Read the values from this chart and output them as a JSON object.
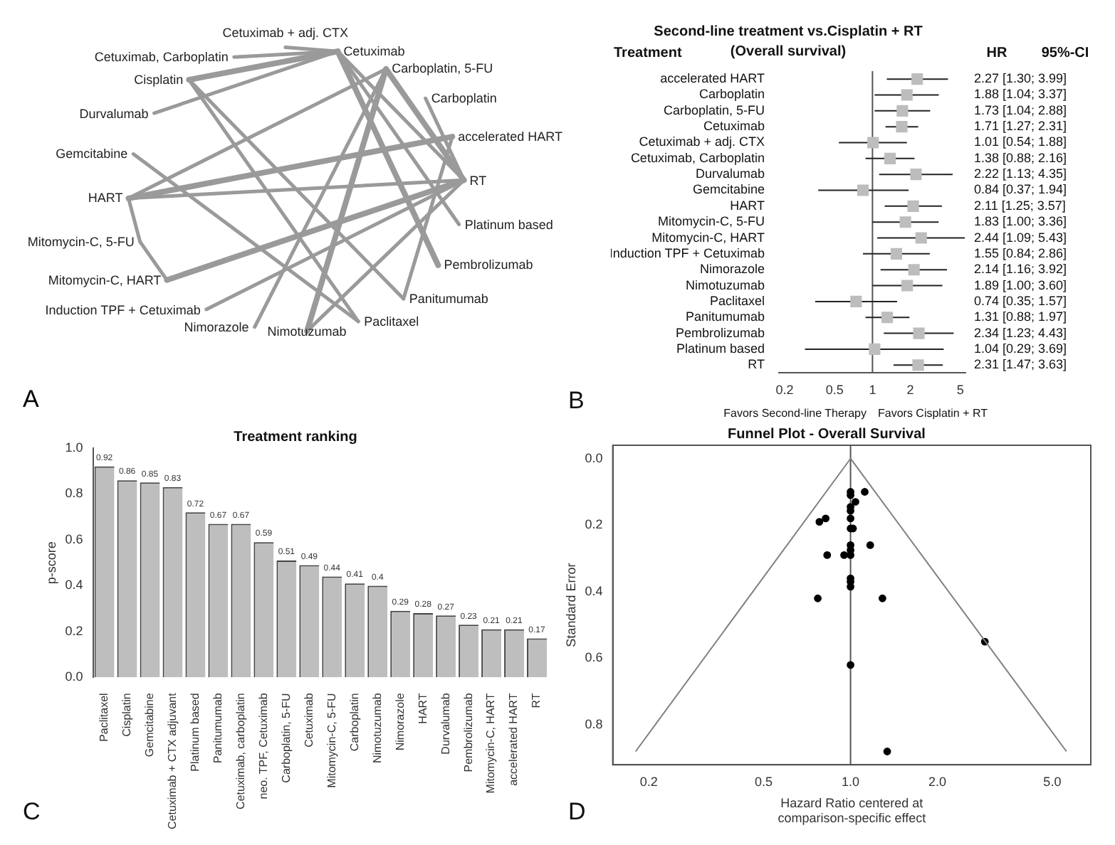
{
  "chart_data": [
    {
      "type": "other",
      "categories": [
        "Cetuximab",
        "Carboplatin, 5-FU",
        "Carboplatin",
        "accelerated HART",
        "RT",
        "Platinum based",
        "Pembrolizumab",
        "Panitumumab",
        "Paclitaxel",
        "Nimotuzumab",
        "Nimorazole",
        "Induction TPF + Cetuximab",
        "Mitomycin-C, HART",
        "Mitomycin-C, 5-FU",
        "HART",
        "Gemcitabine",
        "Durvalumab",
        "Cisplatin",
        "Cetuximab, Carboplatin",
        "Cetuximab + adj. CTX"
      ],
      "annotations": [
        "A"
      ]
    },
    {
      "type": "scatter",
      "orientation": "horizontal",
      "title": "Second-line treatment vs.Cisplatin + RT",
      "subtitle": "(Overall survival)",
      "categories": [
        "accelerated HART",
        "Carboplatin",
        "Carboplatin, 5-FU",
        "Cetuximab",
        "Cetuximab + adj. CTX",
        "Cetuximab, Carboplatin",
        "Durvalumab",
        "Gemcitabine",
        "HART",
        "Mitomycin-C, 5-FU",
        "Mitomycin-C, HART",
        "Induction TPF + Cetuximab",
        "Nimorazole",
        "Nimotuzumab",
        "Paclitaxel",
        "Panitumumab",
        "Pembrolizumab",
        "Platinum based",
        "RT"
      ],
      "values": [
        2.27,
        1.88,
        1.73,
        1.71,
        1.01,
        1.38,
        2.22,
        0.84,
        2.11,
        1.83,
        2.44,
        1.55,
        2.14,
        1.89,
        0.74,
        1.31,
        2.34,
        1.04,
        2.31
      ],
      "errors": [
        [
          1.3,
          3.99
        ],
        [
          1.04,
          3.37
        ],
        [
          1.04,
          2.88
        ],
        [
          1.27,
          2.31
        ],
        [
          0.54,
          1.88
        ],
        [
          0.88,
          2.16
        ],
        [
          1.13,
          4.35
        ],
        [
          0.37,
          1.94
        ],
        [
          1.25,
          3.57
        ],
        [
          1.0,
          3.36
        ],
        [
          1.09,
          5.43
        ],
        [
          0.84,
          2.86
        ],
        [
          1.16,
          3.92
        ],
        [
          1.0,
          3.6
        ],
        [
          0.35,
          1.57
        ],
        [
          0.88,
          1.97
        ],
        [
          1.23,
          4.43
        ],
        [
          0.29,
          3.69
        ],
        [
          1.47,
          3.63
        ]
      ],
      "value_labels": [
        "2.27 [1.30; 3.99]",
        "1.88 [1.04; 3.37]",
        "1.73 [1.04; 2.88]",
        "1.71 [1.27; 2.31]",
        "1.01 [0.54; 1.88]",
        "1.38 [0.88; 2.16]",
        "2.22 [1.13; 4.35]",
        "0.84 [0.37; 1.94]",
        "2.11 [1.25; 3.57]",
        "1.83 [1.00; 3.36]",
        "2.44 [1.09; 5.43]",
        "1.55 [0.84; 2.86]",
        "2.14 [1.16; 3.92]",
        "1.89 [1.00; 3.60]",
        "0.74 [0.35; 1.57]",
        "1.31 [0.88; 1.97]",
        "2.34 [1.23; 4.43]",
        "1.04 [0.29; 3.69]",
        "2.31 [1.47; 3.63]"
      ],
      "color": "#bdbdbd",
      "marker": "square",
      "log": "x",
      "xlim": [
        0.18,
        5.5
      ],
      "xticks": [
        0.2,
        0.5,
        1,
        2,
        5
      ],
      "ref_lines": [
        {
          "axis": "x",
          "value": 1
        }
      ],
      "annotations": [
        "Treatment",
        "HR",
        "95%-CI",
        "Favors Second-line Therapy",
        "Favors Cisplatin + RT",
        "B"
      ]
    },
    {
      "type": "bar",
      "title": "Treatment ranking",
      "ylabel": "p-score",
      "categories": [
        "Paclitaxel",
        "Cisplatin",
        "Gemcitabine",
        "Cetuximab + CTX adjuvant",
        "Platinum based",
        "Panitumumab",
        "Cetuximab, carboplatin",
        "neo. TPF, Cetuximab",
        "Carboplatin, 5-FU",
        "Cetuximab",
        "Mitomycin-C, 5-FU",
        "Carboplatin",
        "Nimotuzumab",
        "Nimorazole",
        "HART",
        "Durvalumab",
        "Pembrolizumab",
        "Mitomycin-C, HART",
        "accelerated HART",
        "RT"
      ],
      "values": [
        0.92,
        0.86,
        0.85,
        0.83,
        0.72,
        0.67,
        0.67,
        0.59,
        0.51,
        0.49,
        0.44,
        0.41,
        0.4,
        0.29,
        0.28,
        0.27,
        0.23,
        0.21,
        0.21,
        0.17
      ],
      "color": "#bebebe",
      "data_labels": true,
      "ylim": [
        0,
        1
      ],
      "yticks": [
        {
          "value": 0,
          "label": "0.0"
        },
        {
          "value": 0.2,
          "label": "0.2"
        },
        {
          "value": 0.4,
          "label": "0.4"
        },
        {
          "value": 0.6,
          "label": "0.6"
        },
        {
          "value": 0.8,
          "label": "0.8"
        },
        {
          "value": 1,
          "label": "1.0"
        }
      ],
      "annotations": [
        "C"
      ]
    },
    {
      "type": "scatter",
      "title": "Funnel Plot - Overall Survival",
      "xlabel": "Hazard Ratio centered at\ncomparison-specific effect",
      "ylabel": "Standard Error",
      "log": "x",
      "xlim": [
        0.15,
        6.8
      ],
      "ylim": [
        0.92,
        -0.04
      ],
      "xticks": [
        0.2,
        0.5,
        {
          "value": 1,
          "label": "1.0"
        },
        {
          "value": 2,
          "label": "2.0"
        },
        {
          "value": 5,
          "label": "5.0"
        }
      ],
      "yticks": [
        {
          "value": 0,
          "label": "0.0"
        },
        {
          "value": 0.2,
          "label": "0.2"
        },
        {
          "value": 0.4,
          "label": "0.4"
        },
        {
          "value": 0.6,
          "label": "0.6"
        },
        {
          "value": 0.8,
          "label": "0.8"
        }
      ],
      "marker": "circle",
      "series": [
        {
          "type": "line",
          "color": "#808080",
          "marker": "none",
          "x": [
            0.18,
            1,
            5.6
          ],
          "values": [
            0.88,
            0,
            0.88
          ]
        },
        {
          "color": "#000000",
          "x": [
            1.12,
            1,
            1,
            1.04,
            1,
            1,
            0.78,
            0.82,
            1,
            1,
            1.02,
            1.17,
            1,
            1,
            0.83,
            0.95,
            1,
            1,
            1,
            1,
            0.77,
            1.29,
            2.92,
            1,
            1.34
          ],
          "values": [
            0.1,
            0.1,
            0.11,
            0.13,
            0.145,
            0.157,
            0.19,
            0.18,
            0.18,
            0.21,
            0.21,
            0.26,
            0.26,
            0.275,
            0.29,
            0.29,
            0.29,
            0.36,
            0.37,
            0.385,
            0.42,
            0.42,
            0.55,
            0.62,
            0.88
          ]
        }
      ],
      "ref_lines": [
        {
          "axis": "x",
          "value": 1
        }
      ],
      "annotations": [
        "D"
      ]
    }
  ]
}
